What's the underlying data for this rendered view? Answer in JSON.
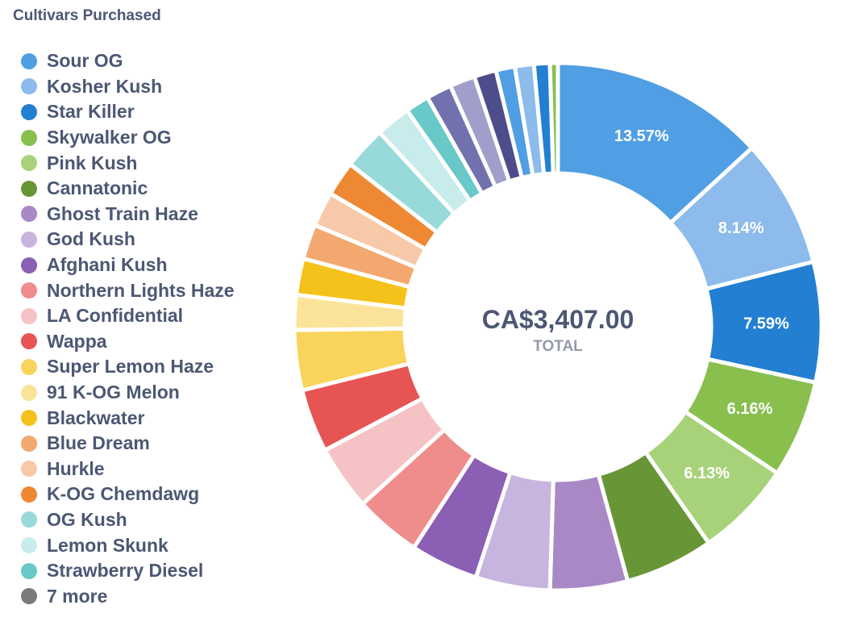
{
  "title": "Cultivars Purchased",
  "center": {
    "value": "CA$3,407.00",
    "label": "TOTAL"
  },
  "legend": [
    {
      "label": "Sour OG",
      "color": "#509ee3"
    },
    {
      "label": "Kosher Kush",
      "color": "#8cbbec"
    },
    {
      "label": "Star Killer",
      "color": "#227fd2"
    },
    {
      "label": "Skywalker OG",
      "color": "#88bf4d"
    },
    {
      "label": "Pink Kush",
      "color": "#a8d27a"
    },
    {
      "label": "Cannatonic",
      "color": "#689636"
    },
    {
      "label": "Ghost Train Haze",
      "color": "#a989c5"
    },
    {
      "label": "God Kush",
      "color": "#c7b5df"
    },
    {
      "label": "Afghani Kush",
      "color": "#8b5fb4"
    },
    {
      "label": "Northern Lights Haze",
      "color": "#ef8c8c"
    },
    {
      "label": "LA Confidential",
      "color": "#f5c3c6"
    },
    {
      "label": "Wappa",
      "color": "#e75454"
    },
    {
      "label": "Super Lemon Haze",
      "color": "#f9d45c"
    },
    {
      "label": "91 K-OG Melon",
      "color": "#fbe499"
    },
    {
      "label": "Blackwater",
      "color": "#f5c21b"
    },
    {
      "label": "Blue Dream",
      "color": "#f2a86f"
    },
    {
      "label": "Hurkle",
      "color": "#f7c9a8"
    },
    {
      "label": "K-OG Chemdawg",
      "color": "#ef8832"
    },
    {
      "label": "OG Kush",
      "color": "#98d9d9"
    },
    {
      "label": "Lemon Skunk",
      "color": "#c8ebeb"
    },
    {
      "label": "Strawberry Diesel",
      "color": "#69c8c8"
    },
    {
      "label": "7 more",
      "color": "#7a7a7a"
    }
  ],
  "chart_data": {
    "type": "pie",
    "style": "donut",
    "title": "Cultivars Purchased",
    "total": "CA$3,407.00",
    "slices": [
      {
        "label": "Sour OG",
        "percent": 13.57,
        "color": "#509ee3",
        "show_label": true
      },
      {
        "label": "Kosher Kush",
        "percent": 8.14,
        "color": "#8cbbec",
        "show_label": true
      },
      {
        "label": "Star Killer",
        "percent": 7.59,
        "color": "#227fd2",
        "show_label": true
      },
      {
        "label": "Skywalker OG",
        "percent": 6.16,
        "color": "#88bf4d",
        "show_label": true
      },
      {
        "label": "Pink Kush",
        "percent": 6.13,
        "color": "#a8d27a",
        "show_label": true
      },
      {
        "label": "Cannatonic",
        "percent": 5.6,
        "color": "#689636",
        "show_label": false
      },
      {
        "label": "Ghost Train Haze",
        "percent": 4.9,
        "color": "#a989c5",
        "show_label": false
      },
      {
        "label": "God Kush",
        "percent": 4.7,
        "color": "#c7b5df",
        "show_label": false
      },
      {
        "label": "Afghani Kush",
        "percent": 4.3,
        "color": "#8b5fb4",
        "show_label": false
      },
      {
        "label": "Northern Lights Haze",
        "percent": 4.2,
        "color": "#ef8c8c",
        "show_label": false
      },
      {
        "label": "LA Confidential",
        "percent": 4.1,
        "color": "#f5c3c6",
        "show_label": false
      },
      {
        "label": "Wappa",
        "percent": 4.0,
        "color": "#e75454",
        "show_label": false
      },
      {
        "label": "Super Lemon Haze",
        "percent": 3.8,
        "color": "#f9d45c",
        "show_label": false
      },
      {
        "label": "91 K-OG Melon",
        "percent": 2.2,
        "color": "#fbe499",
        "show_label": false
      },
      {
        "label": "Blackwater",
        "percent": 2.3,
        "color": "#f5c21b",
        "show_label": false
      },
      {
        "label": "Blue Dream",
        "percent": 2.2,
        "color": "#f2a86f",
        "show_label": false
      },
      {
        "label": "Hurkle",
        "percent": 2.2,
        "color": "#f7c9a8",
        "show_label": false
      },
      {
        "label": "K-OG Chemdawg",
        "percent": 2.2,
        "color": "#ef8832",
        "show_label": false
      },
      {
        "label": "OG Kush",
        "percent": 2.7,
        "color": "#98d9d9",
        "show_label": false
      },
      {
        "label": "Lemon Skunk",
        "percent": 2.2,
        "color": "#c8ebeb",
        "show_label": false
      },
      {
        "label": "Strawberry Diesel",
        "percent": 1.5,
        "color": "#69c8c8",
        "show_label": false
      },
      {
        "label": "",
        "percent": 1.6,
        "color": "#7172ad",
        "show_label": false
      },
      {
        "label": "",
        "percent": 1.6,
        "color": "#a09fcb",
        "show_label": false
      },
      {
        "label": "",
        "percent": 1.4,
        "color": "#4e4d8c",
        "show_label": false
      },
      {
        "label": "",
        "percent": 1.2,
        "color": "#509ee3",
        "show_label": false
      },
      {
        "label": "",
        "percent": 1.2,
        "color": "#8cbbec",
        "show_label": false
      },
      {
        "label": "",
        "percent": 1.0,
        "color": "#227fd2",
        "show_label": false
      },
      {
        "label": "",
        "percent": 0.5,
        "color": "#88bf4d",
        "show_label": false
      }
    ]
  }
}
